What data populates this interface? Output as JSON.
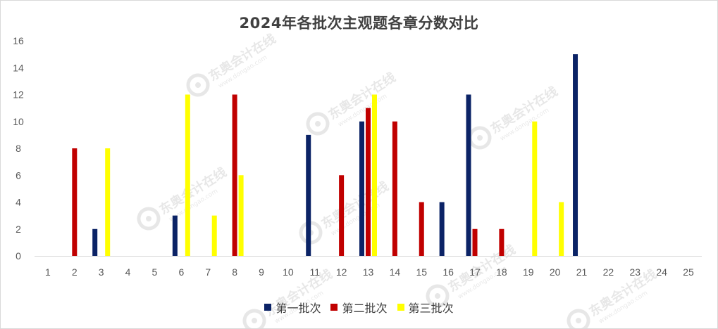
{
  "chart_data": {
    "type": "bar",
    "title": "2024年各批次主观题各章分数对比",
    "categories": [
      "1",
      "2",
      "3",
      "4",
      "5",
      "6",
      "7",
      "8",
      "9",
      "10",
      "11",
      "12",
      "13",
      "14",
      "15",
      "16",
      "17",
      "18",
      "19",
      "20",
      "21",
      "22",
      "23",
      "24",
      "25"
    ],
    "ylim": [
      0,
      16
    ],
    "yticks": [
      0,
      2,
      4,
      6,
      8,
      10,
      12,
      14,
      16
    ],
    "grid": false,
    "legend_position": "bottom",
    "series": [
      {
        "name": "第一批次",
        "color": "#0b2366",
        "values": [
          0,
          0,
          2,
          0,
          0,
          3,
          0,
          0,
          0,
          0,
          9,
          0,
          10,
          0,
          0,
          4,
          12,
          0,
          0,
          0,
          15,
          0,
          0,
          0,
          0
        ]
      },
      {
        "name": "第二批次",
        "color": "#c00000",
        "values": [
          0,
          8,
          0,
          0,
          0,
          0,
          0,
          12,
          0,
          0,
          0,
          6,
          11,
          10,
          4,
          0,
          2,
          2,
          0,
          0,
          0,
          0,
          0,
          0,
          0
        ]
      },
      {
        "name": "第三批次",
        "color": "#ffff00",
        "values": [
          0,
          0,
          8,
          0,
          0,
          12,
          3,
          6,
          0,
          0,
          0,
          0,
          12,
          0,
          0,
          0,
          0,
          0,
          10,
          4,
          0,
          0,
          0,
          0,
          0
        ]
      }
    ]
  },
  "watermark": {
    "text": "东奥会计在线",
    "subtext": "www.dongao.com"
  }
}
